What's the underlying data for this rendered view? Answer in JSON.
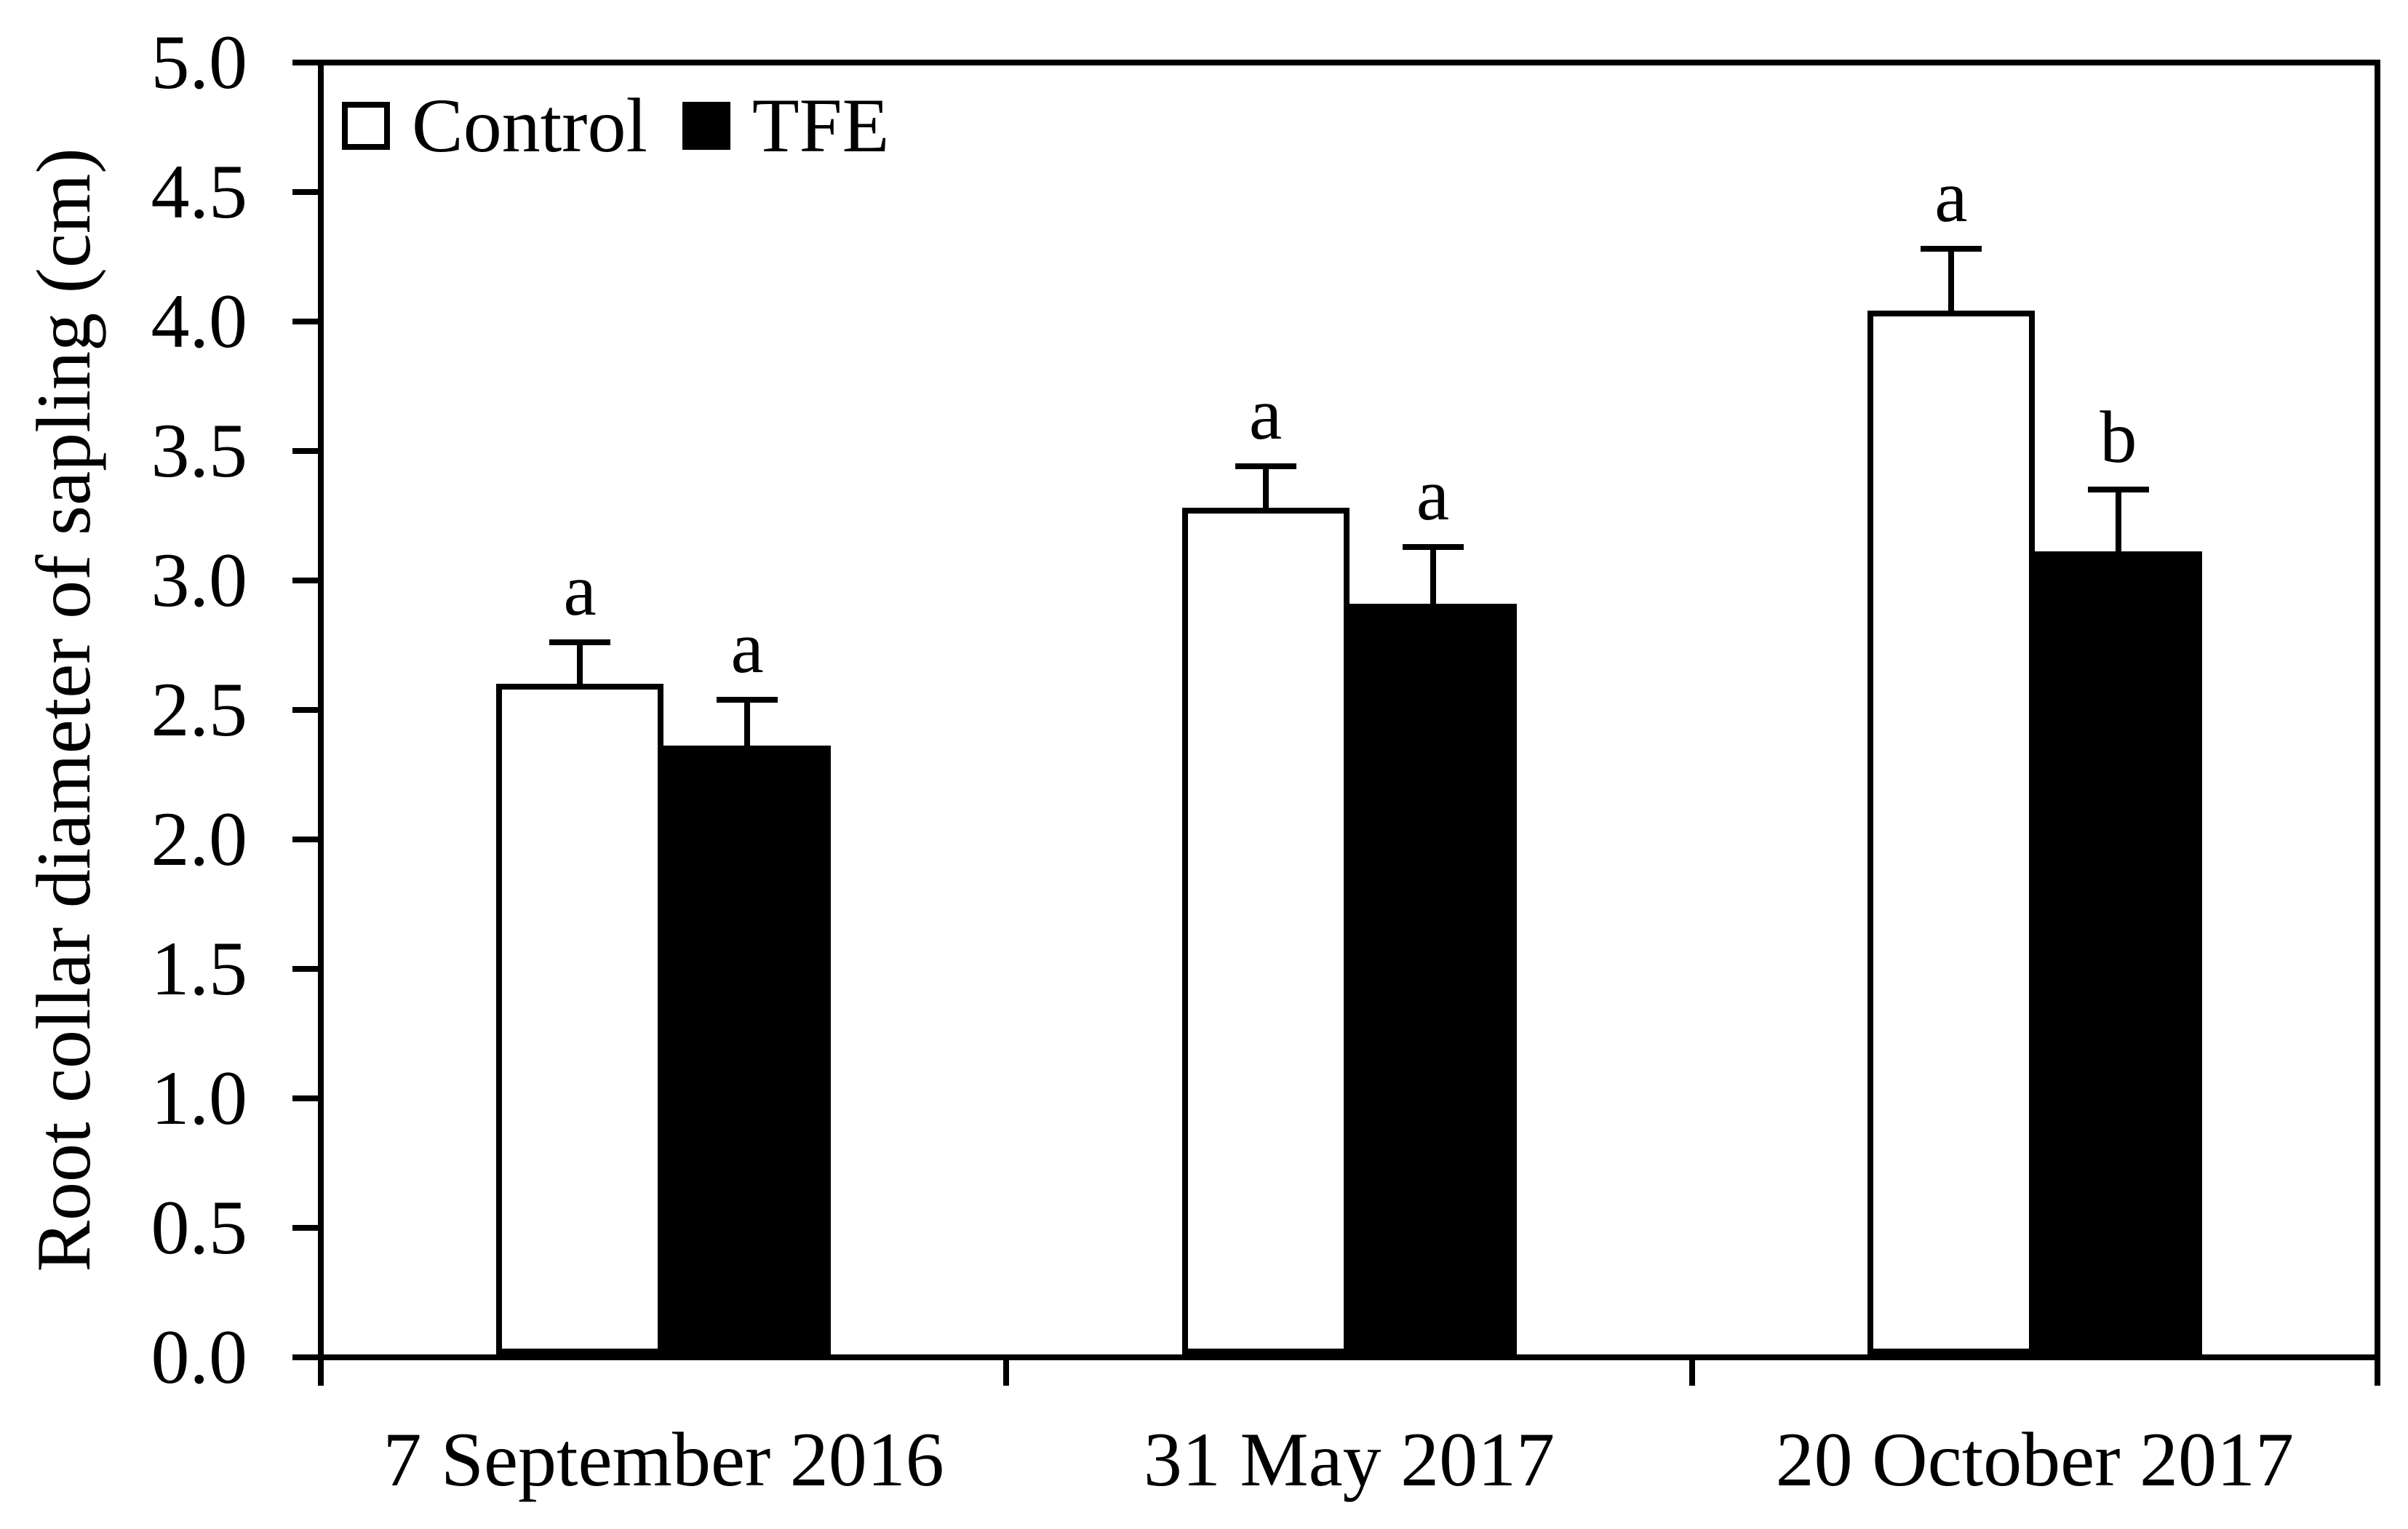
{
  "figure": {
    "background": "#ffffff",
    "axis_color": "#000000",
    "text_color": "#000000"
  },
  "chart_data": {
    "type": "bar",
    "title": "",
    "xlabel": "",
    "ylabel": "Root collar diameter of sapling (cm)",
    "ylim": [
      0.0,
      5.0
    ],
    "ytick_step": 0.5,
    "yticks_top_to_bottom": [
      "5.0",
      "4.5",
      "4.0",
      "3.5",
      "3.0",
      "2.5",
      "2.0",
      "1.5",
      "1.0",
      "0.5",
      "0.0"
    ],
    "categories": [
      "7 September 2016",
      "31 May 2017",
      "20 October 2017"
    ],
    "series": [
      {
        "name": "Control",
        "fill": "#ffffff",
        "border": "#000000",
        "values": [
          2.59,
          3.27,
          4.03
        ],
        "errors_plus": [
          0.17,
          0.17,
          0.25
        ],
        "sig_letters": [
          "a",
          "a",
          "a"
        ]
      },
      {
        "name": "TFE",
        "fill": "#000000",
        "border": "#000000",
        "values": [
          2.35,
          2.9,
          3.1
        ],
        "errors_plus": [
          0.19,
          0.23,
          0.25
        ],
        "sig_letters": [
          "a",
          "a",
          "b"
        ]
      }
    ],
    "error_bars": "upper standard error with cap",
    "legend_position": "top-left-inside",
    "grid": false
  }
}
